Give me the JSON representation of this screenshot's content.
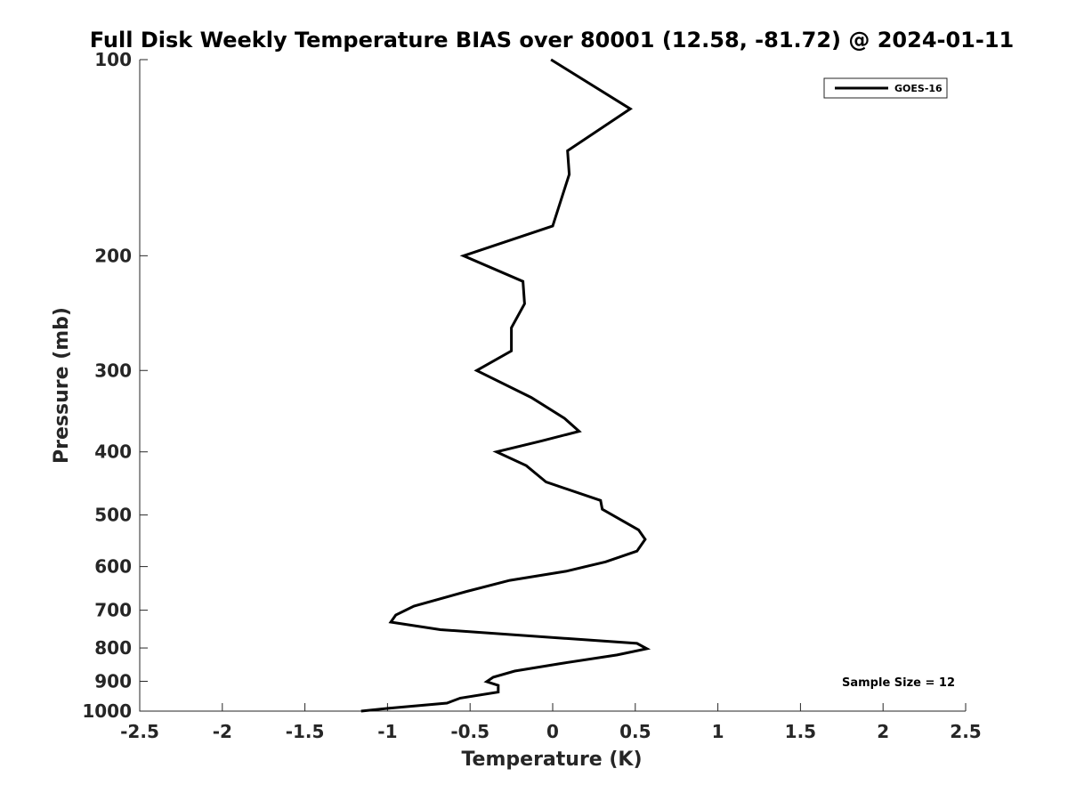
{
  "chart_data": {
    "type": "line",
    "title": "Full Disk Weekly Temperature BIAS over 80001 (12.58, -81.72) @ 2024-01-11",
    "xlabel": "Temperature (K)",
    "ylabel": "Pressure (mb)",
    "xlim": [
      -2.5,
      2.5
    ],
    "ylim": [
      100,
      1000
    ],
    "yscale": "log",
    "y_reversed": true,
    "x_ticks": [
      "-2.5",
      "-2",
      "-1.5",
      "-1",
      "-0.5",
      "0",
      "0.5",
      "1",
      "1.5",
      "2",
      "2.5"
    ],
    "y_ticks": [
      "100",
      "200",
      "300",
      "400",
      "500",
      "600",
      "700",
      "800",
      "900",
      "1000"
    ],
    "grid": false,
    "legend_position": "top-right",
    "series": [
      {
        "name": "GOES-16",
        "color": "#000000",
        "x": [
          -0.01,
          0.47,
          0.09,
          0.1,
          0.0,
          -0.54,
          -0.18,
          -0.17,
          -0.25,
          -0.25,
          -0.46,
          -0.13,
          0.07,
          0.16,
          -0.07,
          -0.34,
          -0.16,
          -0.04,
          0.29,
          0.3,
          0.52,
          0.56,
          0.51,
          0.32,
          0.08,
          -0.26,
          -0.52,
          -0.84,
          -0.95,
          -0.98,
          -0.68,
          0.51,
          0.57,
          0.39,
          0.05,
          -0.23,
          -0.36,
          -0.4,
          -0.33,
          -0.33,
          -0.56,
          -0.64,
          -0.99,
          -1.16
        ],
        "y": [
          100,
          119,
          138,
          150,
          180,
          200,
          219,
          237,
          258,
          280,
          300,
          330,
          355,
          372,
          385,
          400,
          420,
          445,
          475,
          490,
          527,
          545,
          568,
          590,
          610,
          630,
          655,
          690,
          712,
          730,
          750,
          787,
          802,
          820,
          845,
          868,
          887,
          901,
          913,
          935,
          955,
          972,
          990,
          1000
        ]
      }
    ],
    "annotations": [
      "Sample Size = 12"
    ]
  }
}
